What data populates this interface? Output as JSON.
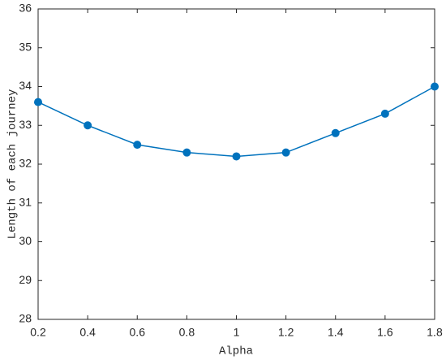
{
  "chart_data": {
    "type": "line",
    "x": [
      0.2,
      0.4,
      0.6,
      0.8,
      1,
      1.2,
      1.4,
      1.6,
      1.8
    ],
    "values": [
      33.6,
      33.0,
      32.5,
      32.3,
      32.2,
      32.3,
      32.8,
      33.3,
      34.0
    ],
    "color": "#0072bd",
    "xlabel": "Alpha",
    "ylabel": "Length of each journey",
    "xlim": [
      0.2,
      1.8
    ],
    "xticks": [
      0.2,
      0.4,
      0.6,
      0.8,
      1,
      1.2,
      1.4,
      1.6,
      1.8
    ],
    "ylim": [
      28,
      36
    ],
    "yticks": [
      28,
      29,
      30,
      31,
      32,
      33,
      34,
      35,
      36
    ],
    "grid": false
  }
}
